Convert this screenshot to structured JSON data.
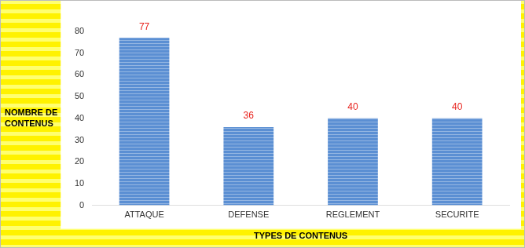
{
  "chart_data": {
    "type": "bar",
    "categories": [
      "ATTAQUE",
      "DEFENSE",
      "REGLEMENT",
      "SECURITE"
    ],
    "values": [
      77,
      36,
      40,
      40
    ],
    "color": "#5b8fd3",
    "x_label": "TYPES DE CONTENUS",
    "y_label": "NOMBRE DE CONTENUS",
    "ylim": [
      0,
      80
    ],
    "yticks": [
      0,
      10,
      20,
      30,
      40,
      50,
      60,
      70,
      80
    ],
    "grid": false,
    "data_labels": true
  }
}
